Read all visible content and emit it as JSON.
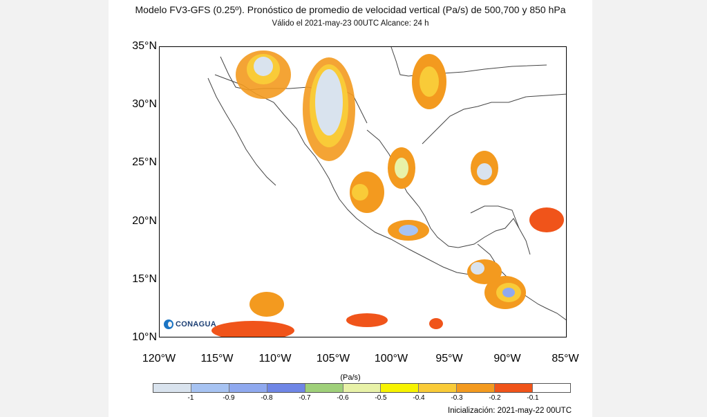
{
  "title": "Modelo FV3-GFS (0.25º). Pronóstico de promedio de velocidad vertical (Pa/s) de 500,700 y 850 hPa",
  "subtitle": "Válido el 2021-may-23 00UTC    Alcance: 24 h",
  "map": {
    "lat_labels": [
      "35°N",
      "30°N",
      "25°N",
      "20°N",
      "15°N",
      "10°N"
    ],
    "lon_labels": [
      "120°W",
      "115°W",
      "110°W",
      "105°W",
      "100°W",
      "95°W",
      "90°W",
      "85°W"
    ],
    "logo_text": "CONAGUA"
  },
  "colorbar": {
    "unit": "(Pa/s)",
    "labels": [
      "-1",
      "-0.9",
      "-0.8",
      "-0.7",
      "-0.6",
      "-0.5",
      "-0.4",
      "-0.3",
      "-0.2",
      "-0.1"
    ],
    "colors": [
      "#d9e3ee",
      "#a7c3f2",
      "#8fa9ef",
      "#6f86e6",
      "#9fd07a",
      "#e8f2a8",
      "#f7f300",
      "#f9cb38",
      "#f39a1f",
      "#f0541a",
      "#ffffff"
    ]
  },
  "footer": "Inicialización: 2021-may-22 00UTC"
}
